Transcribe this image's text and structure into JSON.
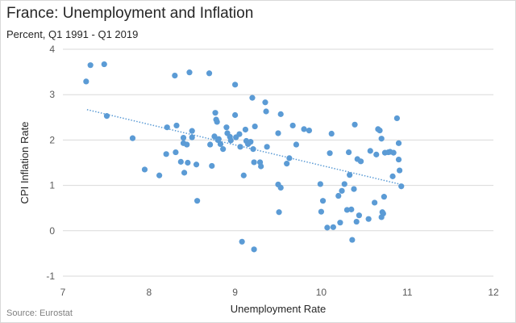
{
  "chart_data": {
    "type": "scatter",
    "title": "France: Unemployment and Inflation",
    "subtitle": "Percent, Q1 1991 - Q1 2019",
    "xlabel": "Unemployment  Rate",
    "ylabel": "CPI Inflation Rate",
    "source": "Source: Eurostat",
    "xlim": [
      7,
      12
    ],
    "ylim": [
      -1,
      4
    ],
    "x_ticks": [
      7,
      8,
      9,
      10,
      11,
      12
    ],
    "y_ticks": [
      -1,
      0,
      1,
      2,
      3,
      4
    ],
    "grid": "horizontal",
    "legend": "none",
    "trendline": {
      "style": "dotted",
      "x1": 7.28,
      "y1": 2.67,
      "x2": 10.93,
      "y2": 1.02
    },
    "marker_color": "#5b9bd5",
    "points": [
      {
        "x": 7.27,
        "y": 3.29
      },
      {
        "x": 7.32,
        "y": 3.65
      },
      {
        "x": 7.48,
        "y": 3.67
      },
      {
        "x": 7.51,
        "y": 2.53
      },
      {
        "x": 7.81,
        "y": 2.04
      },
      {
        "x": 7.95,
        "y": 1.35
      },
      {
        "x": 8.12,
        "y": 1.22
      },
      {
        "x": 8.2,
        "y": 1.69
      },
      {
        "x": 8.21,
        "y": 2.28
      },
      {
        "x": 8.3,
        "y": 3.42
      },
      {
        "x": 8.31,
        "y": 1.73
      },
      {
        "x": 8.32,
        "y": 2.32
      },
      {
        "x": 8.37,
        "y": 1.52
      },
      {
        "x": 8.4,
        "y": 2.05
      },
      {
        "x": 8.4,
        "y": 1.93
      },
      {
        "x": 8.41,
        "y": 1.28
      },
      {
        "x": 8.44,
        "y": 1.9
      },
      {
        "x": 8.45,
        "y": 1.5
      },
      {
        "x": 8.47,
        "y": 3.49
      },
      {
        "x": 8.5,
        "y": 2.2
      },
      {
        "x": 8.5,
        "y": 2.06
      },
      {
        "x": 8.55,
        "y": 1.46
      },
      {
        "x": 8.56,
        "y": 0.66
      },
      {
        "x": 8.7,
        "y": 3.47
      },
      {
        "x": 8.71,
        "y": 1.9
      },
      {
        "x": 8.73,
        "y": 1.43
      },
      {
        "x": 8.76,
        "y": 2.08
      },
      {
        "x": 8.77,
        "y": 2.6
      },
      {
        "x": 8.78,
        "y": 2.45
      },
      {
        "x": 8.79,
        "y": 2.4
      },
      {
        "x": 8.8,
        "y": 2.0
      },
      {
        "x": 8.81,
        "y": 2.02
      },
      {
        "x": 8.83,
        "y": 1.91
      },
      {
        "x": 8.86,
        "y": 1.8
      },
      {
        "x": 8.9,
        "y": 2.28
      },
      {
        "x": 8.91,
        "y": 2.15
      },
      {
        "x": 8.94,
        "y": 2.07
      },
      {
        "x": 8.95,
        "y": 1.99
      },
      {
        "x": 9.0,
        "y": 3.22
      },
      {
        "x": 9.0,
        "y": 2.55
      },
      {
        "x": 9.01,
        "y": 2.06
      },
      {
        "x": 9.05,
        "y": 2.13
      },
      {
        "x": 9.06,
        "y": 1.85
      },
      {
        "x": 9.08,
        "y": -0.24
      },
      {
        "x": 9.1,
        "y": 1.22
      },
      {
        "x": 9.12,
        "y": 2.23
      },
      {
        "x": 9.13,
        "y": 1.98
      },
      {
        "x": 9.15,
        "y": 1.91
      },
      {
        "x": 9.18,
        "y": 1.96
      },
      {
        "x": 9.2,
        "y": 2.93
      },
      {
        "x": 9.21,
        "y": 1.8
      },
      {
        "x": 9.22,
        "y": 1.51
      },
      {
        "x": 9.22,
        "y": -0.41
      },
      {
        "x": 9.23,
        "y": 2.3
      },
      {
        "x": 9.29,
        "y": 1.51
      },
      {
        "x": 9.3,
        "y": 1.42
      },
      {
        "x": 9.35,
        "y": 2.83
      },
      {
        "x": 9.36,
        "y": 2.63
      },
      {
        "x": 9.37,
        "y": 1.85
      },
      {
        "x": 9.5,
        "y": 2.15
      },
      {
        "x": 9.5,
        "y": 1.02
      },
      {
        "x": 9.51,
        "y": 0.41
      },
      {
        "x": 9.53,
        "y": 0.95
      },
      {
        "x": 9.53,
        "y": 2.57
      },
      {
        "x": 9.6,
        "y": 1.48
      },
      {
        "x": 9.63,
        "y": 1.6
      },
      {
        "x": 9.67,
        "y": 2.32
      },
      {
        "x": 9.71,
        "y": 1.9
      },
      {
        "x": 9.8,
        "y": 2.24
      },
      {
        "x": 9.86,
        "y": 2.21
      },
      {
        "x": 9.99,
        "y": 1.03
      },
      {
        "x": 10.0,
        "y": 0.42
      },
      {
        "x": 10.02,
        "y": 0.66
      },
      {
        "x": 10.07,
        "y": 0.07
      },
      {
        "x": 10.1,
        "y": 1.71
      },
      {
        "x": 10.12,
        "y": 2.14
      },
      {
        "x": 10.14,
        "y": 0.08
      },
      {
        "x": 10.2,
        "y": 0.77
      },
      {
        "x": 10.22,
        "y": 0.18
      },
      {
        "x": 10.24,
        "y": 0.88
      },
      {
        "x": 10.27,
        "y": 1.03
      },
      {
        "x": 10.3,
        "y": 0.46
      },
      {
        "x": 10.32,
        "y": 1.73
      },
      {
        "x": 10.33,
        "y": 1.23
      },
      {
        "x": 10.35,
        "y": 0.47
      },
      {
        "x": 10.36,
        "y": -0.2
      },
      {
        "x": 10.38,
        "y": 0.92
      },
      {
        "x": 10.39,
        "y": 2.34
      },
      {
        "x": 10.41,
        "y": 0.2
      },
      {
        "x": 10.42,
        "y": 1.58
      },
      {
        "x": 10.44,
        "y": 0.34
      },
      {
        "x": 10.46,
        "y": 1.53
      },
      {
        "x": 10.55,
        "y": 0.26
      },
      {
        "x": 10.57,
        "y": 1.76
      },
      {
        "x": 10.62,
        "y": 0.62
      },
      {
        "x": 10.64,
        "y": 1.68
      },
      {
        "x": 10.66,
        "y": 2.24
      },
      {
        "x": 10.68,
        "y": 2.21
      },
      {
        "x": 10.7,
        "y": 2.03
      },
      {
        "x": 10.7,
        "y": 0.3
      },
      {
        "x": 10.71,
        "y": 0.41
      },
      {
        "x": 10.72,
        "y": 0.38
      },
      {
        "x": 10.73,
        "y": 0.75
      },
      {
        "x": 10.74,
        "y": 1.72
      },
      {
        "x": 10.78,
        "y": 1.73
      },
      {
        "x": 10.8,
        "y": 1.74
      },
      {
        "x": 10.83,
        "y": 1.2
      },
      {
        "x": 10.84,
        "y": 1.72
      },
      {
        "x": 10.88,
        "y": 2.48
      },
      {
        "x": 10.9,
        "y": 1.93
      },
      {
        "x": 10.9,
        "y": 1.57
      },
      {
        "x": 10.91,
        "y": 1.33
      },
      {
        "x": 10.93,
        "y": 0.98
      }
    ]
  }
}
